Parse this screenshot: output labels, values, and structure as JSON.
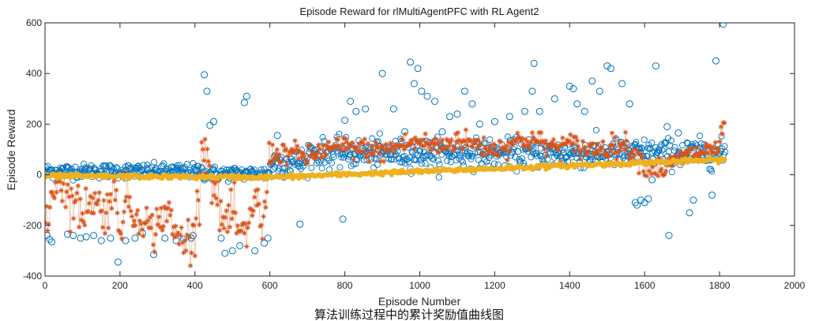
{
  "chart_data": {
    "type": "scatter",
    "title": "Episode Reward for rlMultiAgentPFC with RL Agent2",
    "xlabel": "Episode Number",
    "ylabel": "Episode Reward",
    "xlim": [
      0,
      2000
    ],
    "ylim": [
      -400,
      600
    ],
    "xticks": [
      "0",
      "200",
      "400",
      "600",
      "800",
      "1000",
      "1200",
      "1400",
      "1600",
      "1800",
      "2000"
    ],
    "yticks": [
      "-400",
      "-200",
      "0",
      "200",
      "400",
      "600"
    ],
    "grid": false,
    "legend": "none",
    "colors": {
      "episode_reward": "#0072BD",
      "average_reward": "#D95319",
      "q0": "#EDB120"
    },
    "episodes": 1815,
    "series": [
      {
        "marker": "circle",
        "color": "#0072BD",
        "x": [
          5,
          12,
          18,
          60,
          75,
          95,
          110,
          130,
          150,
          175,
          195,
          215,
          240,
          260,
          290,
          320,
          350,
          370,
          390,
          395,
          425,
          432,
          440,
          450,
          470,
          480,
          500,
          520,
          532,
          538,
          560,
          585,
          595,
          620,
          680,
          795,
          800,
          815,
          830,
          855,
          900,
          930,
          960,
          975,
          985,
          995,
          1005,
          1020,
          1040,
          1060,
          1080,
          1100,
          1120,
          1140,
          1160,
          1200,
          1240,
          1280,
          1300,
          1305,
          1320,
          1360,
          1400,
          1410,
          1420,
          1440,
          1460,
          1480,
          1500,
          1510,
          1540,
          1560,
          1575,
          1580,
          1590,
          1600,
          1610,
          1620,
          1630,
          1660,
          1665,
          1690,
          1720,
          1730,
          1780,
          1790,
          1810
        ],
        "y": [
          -240,
          -255,
          -265,
          -235,
          -240,
          -250,
          -245,
          -240,
          -260,
          -250,
          -345,
          -260,
          -250,
          -230,
          -315,
          -250,
          -260,
          -255,
          -250,
          -240,
          395,
          330,
          195,
          210,
          -250,
          -310,
          -300,
          -280,
          285,
          310,
          -300,
          -270,
          -250,
          155,
          -195,
          -175,
          215,
          290,
          250,
          260,
          400,
          260,
          170,
          445,
          360,
          420,
          330,
          310,
          290,
          170,
          230,
          240,
          330,
          280,
          200,
          210,
          230,
          250,
          330,
          440,
          250,
          300,
          350,
          340,
          280,
          250,
          370,
          330,
          430,
          420,
          360,
          280,
          -110,
          -120,
          -100,
          -110,
          -95,
          -20,
          430,
          190,
          -240,
          165,
          -150,
          -100,
          -80,
          450,
          595
        ]
      },
      {
        "marker": "asterisk",
        "color": "#D95319",
        "x": [
          10,
          20,
          40,
          60,
          80,
          100,
          120,
          140,
          160,
          180,
          200,
          220,
          240,
          260,
          280,
          300,
          320,
          340,
          360,
          380,
          400,
          420,
          440,
          460,
          480,
          500,
          520,
          540,
          560,
          580,
          600,
          650,
          700,
          750,
          800,
          850,
          900,
          950,
          1000,
          1050,
          1100,
          1150,
          1200,
          1250,
          1300,
          1350,
          1400,
          1450,
          1500,
          1550,
          1600,
          1650,
          1700,
          1750,
          1800,
          1815
        ],
        "y": [
          -150,
          -60,
          0,
          -90,
          -110,
          -160,
          -80,
          -120,
          -150,
          -60,
          -190,
          -100,
          -170,
          -140,
          -230,
          -200,
          -130,
          -210,
          -260,
          -250,
          -250,
          140,
          30,
          -120,
          -200,
          -150,
          -240,
          -260,
          -50,
          -240,
          80,
          90,
          70,
          100,
          110,
          100,
          90,
          120,
          130,
          110,
          140,
          120,
          100,
          130,
          140,
          110,
          120,
          100,
          110,
          120,
          40,
          20,
          70,
          90,
          110,
          215
        ]
      },
      {
        "marker": "dot",
        "color": "#EDB120",
        "x": [
          0,
          600,
          1815
        ],
        "y": [
          -5,
          -10,
          60
        ]
      }
    ]
  },
  "caption": "算法训练过程中的累计奖励值曲线图"
}
